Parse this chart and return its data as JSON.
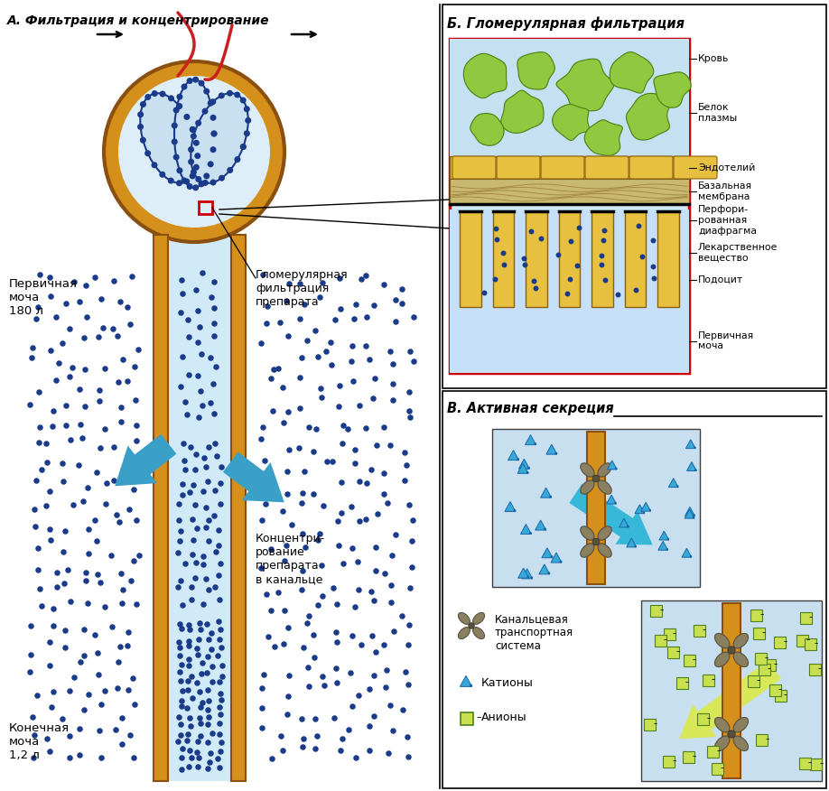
{
  "title_A": "А. Фильтрация и концентрирование",
  "title_B": "Б. Гломерулярная фильтрация",
  "title_C": "В. Активная секреция",
  "label_primary_urine": "Первичная\nмоча\n180 л",
  "label_final_urine": "Конечная\nмоча\n1,2 л",
  "label_glom_filt": "Гломерулярная\nфильтрация\nпрепарата",
  "label_concentr": "Концентри-\nрование\nпрепарата\nв канальце",
  "labels_B": [
    "Кровь",
    "Белок\nплазмы",
    "Эндотелий",
    "Базальная\nмембрана",
    "Перфори-\nрованная\nдиафрагма",
    "Лекарственное\nвещество",
    "Подоцит",
    "Первичная\nмоча"
  ],
  "labels_legend": [
    "Канальцевая\nтранспортная\nсистема",
    "Катионы",
    "Анионы"
  ],
  "bg_color": "#ffffff",
  "orange": "#d4901a",
  "dark_blue": "#1a3a8a",
  "blue_arrow": "#3ba0c8",
  "red_border": "#cc0000",
  "gray_transport": "#8a8060",
  "cyan_arrow": "#30b0d0",
  "yellow_arrow": "#d8e050"
}
